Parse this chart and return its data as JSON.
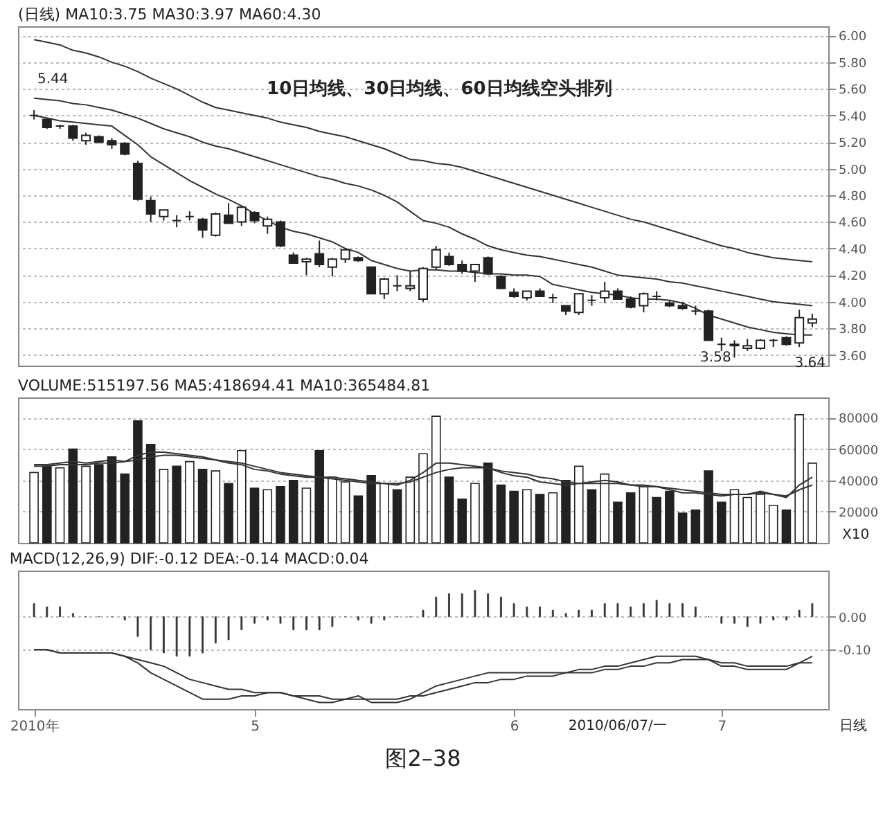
{
  "chart_data": [
    {
      "type": "candlestick",
      "title": "(日线) MA10:3.75 MA30:3.97 MA60:4.30",
      "categories": [
        null,
        null,
        null,
        null,
        null,
        null,
        null,
        null,
        null,
        null,
        null,
        null,
        null,
        null,
        null,
        null,
        null,
        null,
        null,
        null,
        null,
        null,
        null,
        null,
        null,
        null,
        null,
        null,
        null,
        null,
        null,
        null,
        null,
        null,
        null,
        null,
        null,
        null,
        null,
        null,
        null,
        null,
        null,
        null,
        null,
        null,
        null,
        null,
        null,
        null,
        null,
        null,
        null,
        null,
        null,
        null,
        null,
        null,
        null,
        null,
        null
      ],
      "ohlc": [
        [
          5.4,
          5.44,
          5.37,
          5.4
        ],
        [
          5.37,
          5.38,
          5.3,
          5.31
        ],
        [
          5.32,
          5.33,
          5.3,
          5.32
        ],
        [
          5.32,
          5.33,
          5.21,
          5.23
        ],
        [
          5.21,
          5.27,
          5.18,
          5.25
        ],
        [
          5.24,
          5.25,
          5.19,
          5.2
        ],
        [
          5.21,
          5.23,
          5.15,
          5.18
        ],
        [
          5.19,
          5.2,
          5.1,
          5.11
        ],
        [
          5.04,
          5.06,
          4.76,
          4.77
        ],
        [
          4.76,
          4.79,
          4.6,
          4.66
        ],
        [
          4.64,
          4.69,
          4.61,
          4.69
        ],
        [
          4.61,
          4.65,
          4.56,
          4.61
        ],
        [
          4.64,
          4.68,
          4.61,
          4.64
        ],
        [
          4.62,
          4.63,
          4.48,
          4.54
        ],
        [
          4.5,
          4.67,
          4.49,
          4.66
        ],
        [
          4.65,
          4.74,
          4.59,
          4.59
        ],
        [
          4.6,
          4.72,
          4.57,
          4.71
        ],
        [
          4.67,
          4.68,
          4.59,
          4.61
        ],
        [
          4.57,
          4.64,
          4.51,
          4.62
        ],
        [
          4.6,
          4.61,
          4.41,
          4.42
        ],
        [
          4.35,
          4.37,
          4.29,
          4.29
        ],
        [
          4.3,
          4.33,
          4.2,
          4.32
        ],
        [
          4.36,
          4.46,
          4.26,
          4.28
        ],
        [
          4.26,
          4.33,
          4.19,
          4.32
        ],
        [
          4.32,
          4.4,
          4.29,
          4.39
        ],
        [
          4.33,
          4.34,
          4.3,
          4.31
        ],
        [
          4.26,
          4.26,
          4.06,
          4.06
        ],
        [
          4.06,
          4.18,
          4.02,
          4.17
        ],
        [
          4.12,
          4.2,
          4.08,
          4.12
        ],
        [
          4.1,
          4.23,
          4.08,
          4.12
        ],
        [
          4.02,
          4.26,
          4.0,
          4.25
        ],
        [
          4.26,
          4.42,
          4.24,
          4.39
        ],
        [
          4.34,
          4.37,
          4.27,
          4.28
        ],
        [
          4.28,
          4.31,
          4.21,
          4.23
        ],
        [
          4.23,
          4.28,
          4.15,
          4.28
        ],
        [
          4.33,
          4.34,
          4.2,
          4.21
        ],
        [
          4.19,
          4.2,
          4.1,
          4.1
        ],
        [
          4.07,
          4.1,
          4.03,
          4.04
        ],
        [
          4.03,
          4.08,
          4.01,
          4.08
        ],
        [
          4.08,
          4.1,
          4.04,
          4.04
        ],
        [
          4.03,
          4.06,
          3.99,
          4.03
        ],
        [
          3.97,
          3.97,
          3.9,
          3.93
        ],
        [
          3.92,
          4.06,
          3.9,
          4.06
        ],
        [
          4.01,
          4.05,
          3.97,
          4.01
        ],
        [
          4.03,
          4.15,
          3.99,
          4.08
        ],
        [
          4.08,
          4.1,
          4.02,
          4.02
        ],
        [
          4.02,
          4.04,
          3.95,
          3.96
        ],
        [
          3.97,
          4.07,
          3.92,
          4.06
        ],
        [
          4.04,
          4.08,
          4.01,
          4.04
        ],
        [
          3.99,
          4.01,
          3.96,
          3.97
        ],
        [
          3.97,
          4.0,
          3.94,
          3.95
        ],
        [
          3.93,
          3.97,
          3.9,
          3.93
        ],
        [
          3.93,
          3.94,
          3.71,
          3.71
        ],
        [
          3.68,
          3.73,
          3.63,
          3.68
        ],
        [
          3.67,
          3.71,
          3.58,
          3.68
        ],
        [
          3.65,
          3.72,
          3.63,
          3.67
        ],
        [
          3.65,
          3.72,
          3.64,
          3.71
        ],
        [
          3.71,
          3.72,
          3.66,
          3.71
        ],
        [
          3.73,
          3.74,
          3.67,
          3.68
        ],
        [
          3.69,
          3.94,
          3.66,
          3.88
        ],
        [
          3.84,
          3.91,
          3.81,
          3.87
        ]
      ],
      "colors": [
        "#222222",
        "#222222",
        "#222222",
        "#222222",
        "#ffffff",
        "#222222",
        "#222222",
        "#222222",
        "#222222",
        "#222222",
        "#ffffff",
        "#222222",
        "#222222",
        "#222222",
        "#ffffff",
        "#222222",
        "#ffffff",
        "#222222",
        "#ffffff",
        "#222222",
        "#222222",
        "#ffffff",
        "#222222",
        "#ffffff",
        "#ffffff",
        "#222222",
        "#222222",
        "#ffffff",
        "#222222",
        "#ffffff",
        "#ffffff",
        "#ffffff",
        "#222222",
        "#222222",
        "#ffffff",
        "#222222",
        "#222222",
        "#222222",
        "#ffffff",
        "#222222",
        "#222222",
        "#222222",
        "#ffffff",
        "#222222",
        "#ffffff",
        "#222222",
        "#222222",
        "#ffffff",
        "#222222",
        "#222222",
        "#222222",
        "#222222",
        "#222222",
        "#222222",
        "#ffffff",
        "#ffffff",
        "#ffffff",
        "#222222",
        "#222222",
        "#ffffff",
        "#ffffff"
      ],
      "series": [
        {
          "type": "line",
          "color": "#333333",
          "values": [
            5.4,
            5.38,
            5.36,
            5.35,
            5.34,
            5.33,
            5.32,
            5.25,
            5.18,
            5.09,
            5.03,
            4.97,
            4.91,
            4.86,
            4.81,
            4.77,
            4.72,
            4.66,
            4.61,
            4.56,
            4.53,
            4.51,
            4.48,
            4.45,
            4.4,
            4.37,
            4.31,
            4.28,
            4.25,
            4.23,
            4.24,
            4.24,
            4.23,
            4.23,
            4.22,
            4.21,
            4.21,
            4.2,
            4.2,
            4.19,
            4.13,
            4.11,
            4.09,
            4.07,
            4.06,
            4.05,
            4.03,
            4.02,
            4.02,
            4.01,
            3.99,
            3.95,
            3.9,
            3.87,
            3.84,
            3.81,
            3.79,
            3.77,
            3.76,
            3.75,
            3.75
          ]
        },
        {
          "type": "line",
          "color": "#333333",
          "values": [
            5.53,
            5.52,
            5.51,
            5.49,
            5.48,
            5.46,
            5.44,
            5.41,
            5.38,
            5.34,
            5.3,
            5.27,
            5.24,
            5.2,
            5.17,
            5.15,
            5.12,
            5.09,
            5.06,
            5.03,
            5.0,
            4.97,
            4.94,
            4.92,
            4.89,
            4.87,
            4.84,
            4.8,
            4.75,
            4.68,
            4.61,
            4.59,
            4.56,
            4.51,
            4.47,
            4.42,
            4.39,
            4.37,
            4.35,
            4.34,
            4.32,
            4.3,
            4.28,
            4.26,
            4.23,
            4.2,
            4.19,
            4.18,
            4.17,
            4.15,
            4.14,
            4.12,
            4.1,
            4.08,
            4.06,
            4.04,
            4.02,
            4.0,
            3.99,
            3.98,
            3.97
          ]
        },
        {
          "type": "line",
          "color": "#333333",
          "values": [
            5.97,
            5.95,
            5.93,
            5.89,
            5.87,
            5.84,
            5.8,
            5.77,
            5.73,
            5.68,
            5.64,
            5.6,
            5.55,
            5.5,
            5.46,
            5.44,
            5.42,
            5.4,
            5.38,
            5.35,
            5.33,
            5.31,
            5.28,
            5.26,
            5.24,
            5.21,
            5.18,
            5.15,
            5.11,
            5.07,
            5.06,
            5.04,
            5.03,
            5.01,
            4.98,
            4.95,
            4.92,
            4.89,
            4.86,
            4.83,
            4.8,
            4.77,
            4.74,
            4.71,
            4.68,
            4.65,
            4.62,
            4.6,
            4.57,
            4.54,
            4.51,
            4.48,
            4.45,
            4.42,
            4.4,
            4.37,
            4.35,
            4.33,
            4.32,
            4.31,
            4.3
          ]
        }
      ],
      "ylim": [
        3.52,
        6.07
      ],
      "yticks": [
        {
          "value": 3.6,
          "label": "3.60"
        },
        {
          "value": 3.8,
          "label": "3.80"
        },
        {
          "value": 4,
          "label": "4.00"
        },
        {
          "value": 4.2,
          "label": "4.20"
        },
        {
          "value": 4.4,
          "label": "4.40"
        },
        {
          "value": 4.6,
          "label": "4.60"
        },
        {
          "value": 4.8,
          "label": "4.80"
        },
        {
          "value": 5,
          "label": "5.00"
        },
        {
          "value": 5.2,
          "label": "5.20"
        },
        {
          "value": 5.4,
          "label": "5.40"
        },
        {
          "value": 5.6,
          "label": "5.60"
        },
        {
          "value": 5.8,
          "label": "5.80"
        },
        {
          "value": 6,
          "label": "6.00"
        }
      ],
      "grid": "y",
      "tick_labels": "y",
      "annotations": [
        "10日均线、30日均线、60日均线空头排列",
        "5.44",
        "3.58",
        "3.64"
      ]
    },
    {
      "type": "bar",
      "title": "VOLUME:515197.56 MA5:418694.41 MA10:365484.81",
      "categories": [
        null,
        null,
        null,
        null,
        null,
        null,
        null,
        null,
        null,
        null,
        null,
        null,
        null,
        null,
        null,
        null,
        null,
        null,
        null,
        null,
        null,
        null,
        null,
        null,
        null,
        null,
        null,
        null,
        null,
        null,
        null,
        null,
        null,
        null,
        null,
        null,
        null,
        null,
        null,
        null,
        null,
        null,
        null,
        null,
        null,
        null,
        null,
        null,
        null,
        null,
        null,
        null,
        null,
        null,
        null,
        null,
        null,
        null,
        null,
        null,
        null
      ],
      "series": [
        {
          "type": "bar",
          "values": [
            45000,
            49000,
            48000,
            60000,
            49000,
            50000,
            55000,
            44000,
            78000,
            63000,
            47000,
            49000,
            52000,
            47000,
            46000,
            38000,
            59000,
            35000,
            34000,
            36000,
            40000,
            35000,
            59000,
            42000,
            39000,
            30000,
            43000,
            38000,
            34000,
            42000,
            57000,
            81000,
            42000,
            28000,
            38000,
            51000,
            37000,
            33000,
            34000,
            31000,
            32000,
            40000,
            49000,
            34000,
            44000,
            26000,
            32000,
            36000,
            29000,
            33000,
            19000,
            21000,
            46000,
            26000,
            34000,
            29000,
            31000,
            24000,
            21000,
            82000,
            51000
          ],
          "colors": [
            "#ffffff",
            "#222222",
            "#ffffff",
            "#222222",
            "#ffffff",
            "#222222",
            "#222222",
            "#222222",
            "#222222",
            "#222222",
            "#ffffff",
            "#222222",
            "#ffffff",
            "#222222",
            "#ffffff",
            "#222222",
            "#ffffff",
            "#222222",
            "#ffffff",
            "#222222",
            "#222222",
            "#ffffff",
            "#222222",
            "#ffffff",
            "#ffffff",
            "#222222",
            "#222222",
            "#ffffff",
            "#222222",
            "#ffffff",
            "#ffffff",
            "#ffffff",
            "#222222",
            "#222222",
            "#ffffff",
            "#222222",
            "#222222",
            "#222222",
            "#ffffff",
            "#222222",
            "#ffffff",
            "#222222",
            "#ffffff",
            "#222222",
            "#ffffff",
            "#222222",
            "#222222",
            "#ffffff",
            "#222222",
            "#222222",
            "#222222",
            "#222222",
            "#222222",
            "#222222",
            "#ffffff",
            "#ffffff",
            "#ffffff",
            "#ffffff",
            "#222222",
            "#ffffff",
            "#ffffff"
          ]
        },
        {
          "type": "line",
          "color": "#333333",
          "values": [
            50000,
            50000,
            51000,
            52000,
            51000,
            52000,
            53000,
            52000,
            56000,
            58000,
            58000,
            57000,
            56000,
            55000,
            53000,
            51000,
            50000,
            47000,
            46000,
            44000,
            43000,
            42000,
            42000,
            41000,
            40000,
            39000,
            38000,
            38000,
            37000,
            40000,
            45000,
            51000,
            51000,
            50000,
            49000,
            48000,
            45000,
            43000,
            42000,
            39000,
            38000,
            37000,
            38000,
            39000,
            40000,
            39000,
            37000,
            36000,
            36000,
            34000,
            32000,
            32000,
            31000,
            30000,
            31000,
            31000,
            33000,
            31000,
            29000,
            37000,
            42000
          ]
        },
        {
          "type": "line",
          "color": "#333333",
          "values": [
            49000,
            49000,
            50000,
            50000,
            50000,
            51000,
            51000,
            52000,
            53000,
            55000,
            56000,
            56000,
            55000,
            54000,
            53000,
            52000,
            51000,
            49000,
            47000,
            45000,
            44000,
            43000,
            42000,
            42000,
            41000,
            40000,
            39000,
            38000,
            38000,
            39000,
            42000,
            45000,
            47000,
            48000,
            48000,
            48000,
            46000,
            45000,
            44000,
            42000,
            41000,
            39000,
            38000,
            38000,
            38000,
            38000,
            37000,
            37000,
            36000,
            35000,
            34000,
            33000,
            32000,
            31000,
            31000,
            31000,
            32000,
            31000,
            30000,
            34000,
            37000
          ]
        }
      ],
      "ylim": [
        0,
        93000
      ],
      "yticks": [
        20000,
        40000,
        60000,
        80000
      ],
      "grid": "y",
      "tick_labels": "y",
      "annotations": [
        "X10"
      ]
    },
    {
      "type": "bar",
      "title": "MACD(12,26,9) DIF:-0.12 DEA:-0.14 MACD:0.04",
      "categories": [
        "2010年",
        null,
        null,
        null,
        null,
        null,
        null,
        null,
        null,
        null,
        null,
        null,
        null,
        null,
        null,
        null,
        null,
        "5",
        null,
        null,
        null,
        null,
        null,
        null,
        null,
        null,
        null,
        null,
        null,
        null,
        null,
        null,
        null,
        null,
        null,
        null,
        null,
        "6",
        null,
        null,
        null,
        null,
        null,
        null,
        null,
        null,
        null,
        null,
        null,
        null,
        null,
        null,
        null,
        "7",
        null,
        null,
        null,
        null,
        null,
        null,
        null
      ],
      "series": [
        {
          "type": "bar",
          "color": "#333333",
          "values": [
            0.04,
            0.03,
            0.03,
            0.01,
            0,
            0,
            0,
            -0.01,
            -0.06,
            -0.1,
            -0.11,
            -0.12,
            -0.12,
            -0.11,
            -0.08,
            -0.07,
            -0.04,
            -0.02,
            -0.01,
            -0.02,
            -0.04,
            -0.04,
            -0.04,
            -0.03,
            0,
            -0.01,
            -0.02,
            -0.01,
            0,
            0,
            0.02,
            0.06,
            0.07,
            0.07,
            0.08,
            0.07,
            0.06,
            0.04,
            0.03,
            0.03,
            0.02,
            0.01,
            0.02,
            0.02,
            0.04,
            0.04,
            0.03,
            0.04,
            0.05,
            0.04,
            0.04,
            0.03,
            0,
            -0.02,
            -0.02,
            -0.03,
            -0.02,
            -0.01,
            -0.01,
            0.02,
            0.04
          ]
        },
        {
          "type": "line",
          "color": "#333333",
          "values": [
            -0.1,
            -0.1,
            -0.11,
            -0.11,
            -0.11,
            -0.11,
            -0.11,
            -0.12,
            -0.14,
            -0.17,
            -0.19,
            -0.21,
            -0.23,
            -0.25,
            -0.25,
            -0.25,
            -0.24,
            -0.24,
            -0.23,
            -0.23,
            -0.24,
            -0.25,
            -0.26,
            -0.26,
            -0.25,
            -0.24,
            -0.26,
            -0.26,
            -0.26,
            -0.25,
            -0.23,
            -0.21,
            -0.2,
            -0.19,
            -0.18,
            -0.17,
            -0.17,
            -0.17,
            -0.17,
            -0.17,
            -0.17,
            -0.17,
            -0.16,
            -0.16,
            -0.15,
            -0.15,
            -0.14,
            -0.13,
            -0.12,
            -0.12,
            -0.12,
            -0.12,
            -0.13,
            -0.15,
            -0.15,
            -0.16,
            -0.16,
            -0.16,
            -0.16,
            -0.14,
            -0.12
          ]
        },
        {
          "type": "line",
          "color": "#333333",
          "values": [
            -0.1,
            -0.1,
            -0.11,
            -0.11,
            -0.11,
            -0.11,
            -0.11,
            -0.12,
            -0.13,
            -0.14,
            -0.15,
            -0.17,
            -0.19,
            -0.2,
            -0.21,
            -0.22,
            -0.22,
            -0.23,
            -0.23,
            -0.23,
            -0.24,
            -0.24,
            -0.24,
            -0.25,
            -0.25,
            -0.25,
            -0.25,
            -0.25,
            -0.25,
            -0.24,
            -0.24,
            -0.23,
            -0.22,
            -0.21,
            -0.2,
            -0.2,
            -0.19,
            -0.19,
            -0.18,
            -0.18,
            -0.18,
            -0.17,
            -0.17,
            -0.17,
            -0.16,
            -0.16,
            -0.15,
            -0.15,
            -0.14,
            -0.14,
            -0.13,
            -0.13,
            -0.13,
            -0.14,
            -0.14,
            -0.15,
            -0.15,
            -0.15,
            -0.15,
            -0.14,
            -0.14
          ]
        }
      ],
      "ylim": [
        -0.28,
        0.14
      ],
      "yticks": [
        {
          "value": -0.1,
          "label": "-0.10"
        },
        {
          "value": 0,
          "label": "0.00"
        }
      ],
      "grid": "y",
      "annotations": [
        "2010/06/07/一",
        "日线",
        "图2–38"
      ]
    }
  ]
}
